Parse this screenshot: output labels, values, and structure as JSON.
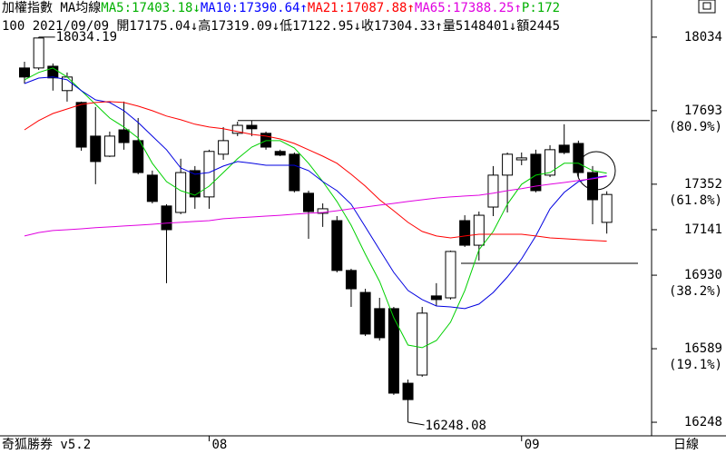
{
  "chart_data": {
    "type": "candlestick",
    "legend_line": [
      {
        "text": "加權指數 MA均線",
        "color": "#000000"
      },
      {
        "text": "MA5:17403.18↓",
        "color": "#00b000"
      },
      {
        "text": "MA10:17390.64↑",
        "color": "#0000ff"
      },
      {
        "text": "MA21:17087.88↑",
        "color": "#ff0000"
      },
      {
        "text": "MA65:17388.25↑",
        "color": "#e000e0"
      },
      {
        "text": "P:172",
        "color": "#00b000"
      }
    ],
    "info_line": "100 2021/09/09 開17175.04↓高17319.09↓低17122.95↓收17304.33↑量5148401↓額2445",
    "footer_left": "奇狐勝券 v5.2",
    "footer_right": "日線",
    "categories": [
      null,
      null,
      null,
      null,
      null,
      null,
      null,
      null,
      null,
      null,
      null,
      null,
      null,
      "08",
      null,
      null,
      null,
      null,
      null,
      null,
      null,
      null,
      null,
      null,
      null,
      null,
      null,
      null,
      null,
      null,
      null,
      null,
      null,
      null,
      null,
      "09",
      null,
      null,
      null,
      null,
      null,
      null
    ],
    "open": [
      17891,
      17891,
      17899,
      17786,
      17731,
      17575,
      17482,
      17604,
      17554,
      17394,
      17251,
      17221,
      17415,
      17293,
      17491,
      17588,
      17625,
      17588,
      17504,
      17491,
      17310,
      17217,
      17183,
      16952,
      16850,
      16775,
      16775,
      16429,
      16467,
      16834,
      16825,
      17183,
      17069,
      17246,
      17394,
      17465,
      17491,
      17394,
      17533,
      17541,
      17406,
      17175.04
    ],
    "high": [
      17920,
      18034.19,
      17912,
      17870,
      17735,
      17710,
      17596,
      17735,
      17659,
      17415,
      17259,
      17470,
      17436,
      17512,
      17617,
      17642,
      17647,
      17596,
      17512,
      17499,
      17322,
      17263,
      17204,
      16960,
      16867,
      16825,
      16783,
      16446,
      16783,
      16893,
      17044,
      17208,
      17225,
      17436,
      17499,
      17499,
      17512,
      17533,
      17630,
      17554,
      17436,
      17319.09
    ],
    "low": [
      17819,
      17882,
      17786,
      17735,
      17507,
      17352,
      17478,
      17512,
      17398,
      17263,
      16893,
      17213,
      17238,
      17238,
      17465,
      17575,
      17575,
      17512,
      17482,
      17314,
      17099,
      17154,
      16943,
      16783,
      16648,
      16627,
      16375,
      16248.08,
      16459,
      16787,
      16817,
      17061,
      16998,
      17204,
      17221,
      17440,
      17314,
      17385,
      17491,
      17385,
      17166,
      17122.95
    ],
    "close": [
      17849,
      18030,
      17845,
      17849,
      17524,
      17457,
      17575,
      17545,
      17406,
      17272,
      17141,
      17406,
      17293,
      17504,
      17554,
      17625,
      17609,
      17524,
      17487,
      17322,
      17225,
      17238,
      16952,
      16867,
      16657,
      16640,
      16383,
      16353,
      16754,
      16817,
      17040,
      17069,
      17208,
      17394,
      17491,
      17474,
      17322,
      17512,
      17499,
      17406,
      17280,
      17304.33
    ],
    "up_color": "#ffffff",
    "down_color": "#000000",
    "series": [
      {
        "name": "MA5",
        "color": "#00d000",
        "values": [
          17836,
          17870,
          17891,
          17849,
          17786,
          17722,
          17659,
          17617,
          17566,
          17449,
          17364,
          17322,
          17301,
          17343,
          17406,
          17470,
          17524,
          17554,
          17554,
          17520,
          17449,
          17364,
          17272,
          17162,
          17027,
          16901,
          16733,
          16606,
          16594,
          16627,
          16712,
          16859,
          17048,
          17133,
          17259,
          17352,
          17394,
          17406,
          17449,
          17449,
          17415,
          17403.18
        ]
      },
      {
        "name": "MA10",
        "color": "#0000e0",
        "values": [
          17819,
          17844,
          17849,
          17836,
          17786,
          17743,
          17731,
          17693,
          17638,
          17575,
          17512,
          17427,
          17398,
          17406,
          17436,
          17457,
          17449,
          17440,
          17440,
          17440,
          17415,
          17364,
          17322,
          17259,
          17154,
          17048,
          16943,
          16859,
          16817,
          16787,
          16783,
          16775,
          16796,
          16850,
          16922,
          17006,
          17112,
          17238,
          17314,
          17364,
          17381,
          17390.64
        ]
      },
      {
        "name": "MA21",
        "color": "#ff0000",
        "values": [
          17604,
          17647,
          17680,
          17701,
          17722,
          17731,
          17735,
          17731,
          17714,
          17693,
          17668,
          17651,
          17630,
          17617,
          17609,
          17596,
          17583,
          17575,
          17562,
          17541,
          17512,
          17482,
          17449,
          17398,
          17343,
          17280,
          17229,
          17175,
          17133,
          17112,
          17103,
          17112,
          17120,
          17120,
          17120,
          17120,
          17112,
          17103,
          17099,
          17095,
          17091,
          17087.88
        ]
      },
      {
        "name": "MA65",
        "color": "#e000e0",
        "values": [
          17112,
          17128,
          17137,
          17141,
          17145,
          17150,
          17154,
          17158,
          17162,
          17166,
          17171,
          17175,
          17179,
          17183,
          17192,
          17196,
          17200,
          17204,
          17208,
          17213,
          17217,
          17221,
          17229,
          17238,
          17246,
          17255,
          17263,
          17272,
          17280,
          17288,
          17293,
          17297,
          17301,
          17310,
          17322,
          17331,
          17343,
          17352,
          17360,
          17369,
          17377,
          17388.25
        ]
      }
    ],
    "annotations": [
      "18034.19",
      "16248.08"
    ],
    "reference_lines": [
      17647,
      16985
    ],
    "ylim": [
      16185,
      18122
    ],
    "yticks": [
      18034,
      17693,
      17352,
      17141,
      16930,
      16589,
      16248
    ],
    "fib_labels": [
      "(80.9%)",
      "(61.8%)",
      "(38.2%)",
      "(19.1%)"
    ]
  }
}
